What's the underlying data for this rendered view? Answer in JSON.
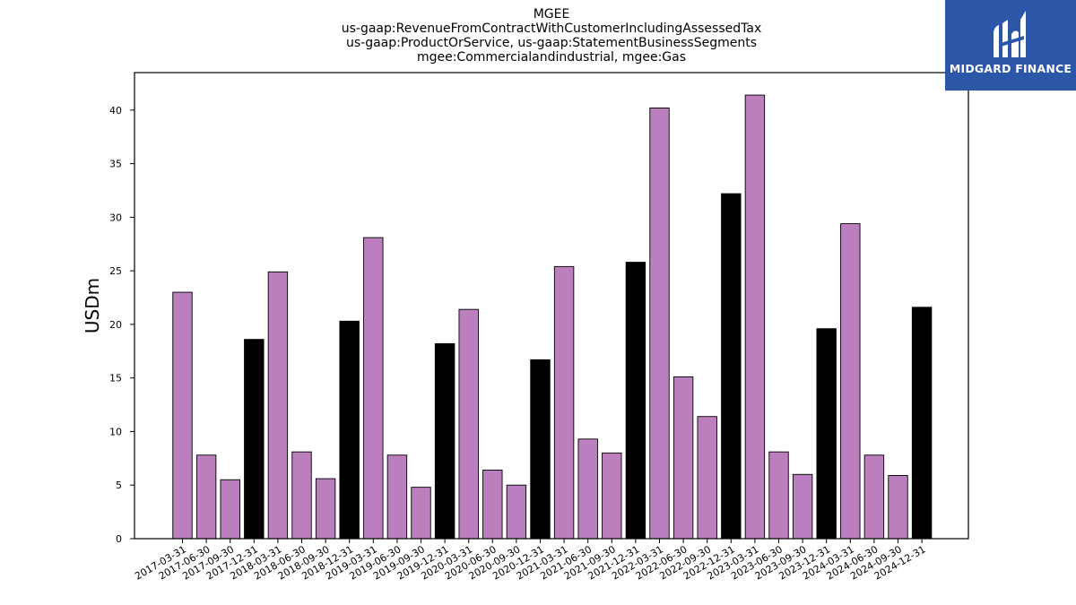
{
  "header": {
    "title_lines": [
      "MGEE",
      "us-gaap:RevenueFromContractWithCustomerIncludingAssessedTax",
      "us-gaap:ProductOrService, us-gaap:StatementBusinessSegments",
      "mgee:Commercialandindustrial, mgee:Gas"
    ]
  },
  "logo": {
    "text": "MIDGARD FINANCE",
    "background": "#2c56a8"
  },
  "colors": {
    "quarterly": "#bb7fbd",
    "annual": "#000000"
  },
  "chart_data": {
    "type": "bar",
    "title": "MGEE",
    "ylabel": "USDm",
    "xlabel": "",
    "ylim": [
      0,
      43.5
    ],
    "yticks": [
      0,
      5,
      10,
      15,
      20,
      25,
      30,
      35,
      40
    ],
    "grid": false,
    "categories": [
      "2017-03-31",
      "2017-06-30",
      "2017-09-30",
      "2017-12-31",
      "2018-03-31",
      "2018-06-30",
      "2018-09-30",
      "2018-12-31",
      "2019-03-31",
      "2019-06-30",
      "2019-09-30",
      "2019-12-31",
      "2020-03-31",
      "2020-06-30",
      "2020-09-30",
      "2020-12-31",
      "2021-03-31",
      "2021-06-30",
      "2021-09-30",
      "2021-12-31",
      "2022-03-31",
      "2022-06-30",
      "2022-09-30",
      "2022-12-31",
      "2023-03-31",
      "2023-06-30",
      "2023-09-30",
      "2023-12-31",
      "2024-03-31",
      "2024-06-30",
      "2024-09-30",
      "2024-12-31"
    ],
    "values": [
      23.0,
      7.8,
      5.5,
      18.6,
      24.9,
      8.1,
      5.6,
      20.3,
      28.1,
      7.8,
      4.8,
      18.2,
      21.4,
      6.4,
      5.0,
      16.7,
      25.4,
      9.3,
      8.0,
      25.8,
      40.2,
      15.1,
      11.4,
      32.2,
      41.4,
      8.1,
      6.0,
      19.6,
      29.4,
      7.8,
      5.9,
      21.6
    ],
    "annual_flags": [
      false,
      false,
      false,
      true,
      false,
      false,
      false,
      true,
      false,
      false,
      false,
      true,
      false,
      false,
      false,
      true,
      false,
      false,
      false,
      true,
      false,
      false,
      false,
      true,
      false,
      false,
      false,
      true,
      false,
      false,
      false,
      true
    ]
  }
}
